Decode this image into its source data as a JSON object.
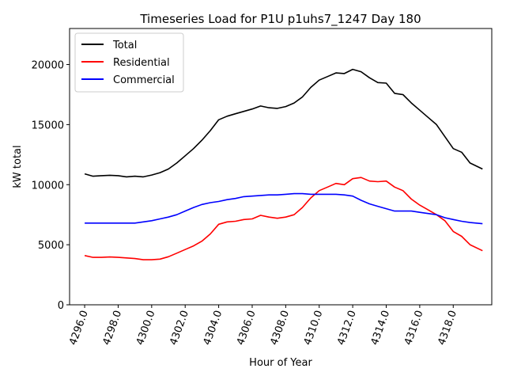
{
  "chart_data": {
    "type": "line",
    "title": "Timeseries Load for P1U p1uhs7_1247  Day 180",
    "xlabel": "Hour of Year",
    "ylabel": "kW total",
    "xlim": [
      4295.1,
      4320.3
    ],
    "ylim": [
      0,
      23000
    ],
    "xticks": [
      4296.0,
      4298.0,
      4300.0,
      4302.0,
      4304.0,
      4306.0,
      4308.0,
      4310.0,
      4312.0,
      4314.0,
      4316.0,
      4318.0
    ],
    "xtick_labels": [
      "4296.0",
      "4298.0",
      "4300.0",
      "4302.0",
      "4304.0",
      "4306.0",
      "4308.0",
      "4310.0",
      "4312.0",
      "4314.0",
      "4316.0",
      "4318.0"
    ],
    "yticks": [
      0,
      5000,
      10000,
      15000,
      20000
    ],
    "ytick_labels": [
      "0",
      "5000",
      "10000",
      "15000",
      "20000"
    ],
    "legend_position": "top-left",
    "x": [
      4296.0,
      4296.5,
      4297.0,
      4297.5,
      4298.0,
      4298.5,
      4299.0,
      4299.5,
      4300.0,
      4300.5,
      4301.0,
      4301.5,
      4302.0,
      4302.5,
      4303.0,
      4303.5,
      4304.0,
      4304.5,
      4305.0,
      4305.5,
      4306.0,
      4306.5,
      4307.0,
      4307.5,
      4308.0,
      4308.5,
      4309.0,
      4309.5,
      4310.0,
      4310.5,
      4311.0,
      4311.5,
      4312.0,
      4312.5,
      4313.0,
      4313.5,
      4314.0,
      4314.5,
      4315.0,
      4315.5,
      4316.0,
      4316.5,
      4317.0,
      4317.5,
      4318.0,
      4318.5,
      4319.0,
      4319.75
    ],
    "series": [
      {
        "name": "Total",
        "color": "#000000",
        "values": [
          10900,
          10700,
          10750,
          10780,
          10750,
          10650,
          10700,
          10650,
          10800,
          11000,
          11300,
          11800,
          12400,
          13000,
          13700,
          14500,
          15400,
          15700,
          15900,
          16100,
          16300,
          16550,
          16400,
          16350,
          16500,
          16800,
          17300,
          18100,
          18700,
          19000,
          19300,
          19250,
          19600,
          19400,
          18900,
          18500,
          18450,
          17600,
          17500,
          16800,
          16200,
          15600,
          15000,
          14000,
          13000,
          12700,
          11800,
          11300
        ]
      },
      {
        "name": "Residential",
        "color": "#ff0000",
        "values": [
          4100,
          3950,
          3950,
          3980,
          3950,
          3900,
          3850,
          3750,
          3750,
          3800,
          4000,
          4300,
          4600,
          4900,
          5300,
          5900,
          6700,
          6900,
          6950,
          7100,
          7150,
          7450,
          7300,
          7200,
          7300,
          7500,
          8100,
          8900,
          9500,
          9800,
          10100,
          10000,
          10500,
          10600,
          10300,
          10250,
          10300,
          9800,
          9500,
          8800,
          8300,
          7900,
          7500,
          7000,
          6100,
          5700,
          5000,
          4500
        ]
      },
      {
        "name": "Commercial",
        "color": "#0000ff",
        "values": [
          6800,
          6800,
          6800,
          6800,
          6800,
          6800,
          6800,
          6900,
          7000,
          7150,
          7300,
          7500,
          7800,
          8100,
          8350,
          8500,
          8600,
          8750,
          8850,
          9000,
          9050,
          9100,
          9150,
          9150,
          9200,
          9250,
          9250,
          9200,
          9200,
          9200,
          9200,
          9150,
          9050,
          8700,
          8400,
          8200,
          8000,
          7800,
          7800,
          7800,
          7700,
          7600,
          7500,
          7250,
          7100,
          6950,
          6850,
          6750
        ]
      }
    ]
  }
}
